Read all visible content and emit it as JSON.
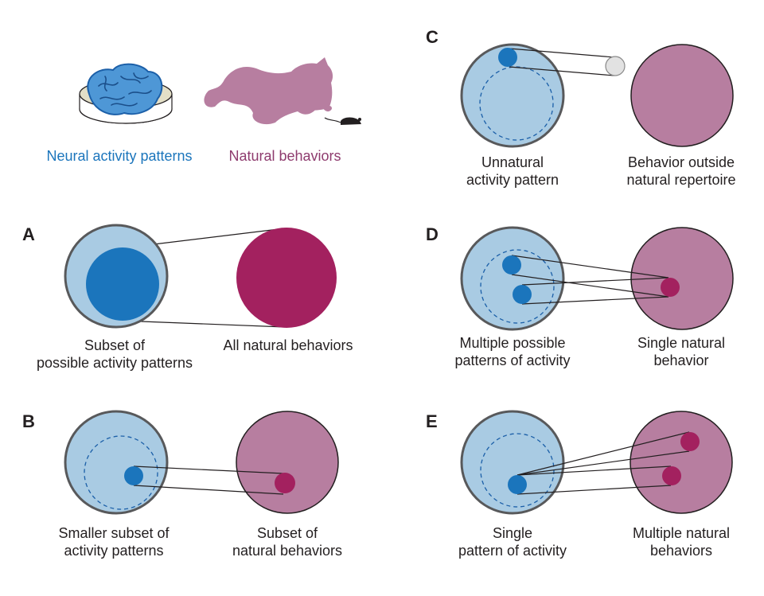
{
  "legend": {
    "neural_label": "Neural activity patterns",
    "natural_label": "Natural behaviors",
    "neural_color": "#1b75bc",
    "natural_color": "#8e3b6e",
    "brain_icon": "brain-in-dish-icon",
    "cat_icon": "cat-chasing-mouse-icon"
  },
  "panels": {
    "A": {
      "letter": "A",
      "left_line1": "Subset of",
      "left_line2": "possible activity patterns",
      "right_line1": "All natural behaviors"
    },
    "B": {
      "letter": "B",
      "left_line1": "Smaller subset of",
      "left_line2": "activity patterns",
      "right_line1": "Subset of",
      "right_line2": "natural behaviors"
    },
    "C": {
      "letter": "C",
      "left_line1": "Unnatural",
      "left_line2": "activity pattern",
      "right_line1": "Behavior outside",
      "right_line2": "natural repertoire"
    },
    "D": {
      "letter": "D",
      "left_line1": "Multiple possible",
      "left_line2": "patterns of activity",
      "right_line1": "Single natural",
      "right_line2": "behavior"
    },
    "E": {
      "letter": "E",
      "left_line1": "Single",
      "left_line2": "pattern of activity",
      "right_line1": "Multiple natural",
      "right_line2": "behaviors"
    }
  },
  "colors": {
    "neural_fill": "#a9cbe3",
    "natural_fill": "#b77ea0",
    "activity_dot": "#1b75bc",
    "behavior_dot": "#a3215f"
  }
}
